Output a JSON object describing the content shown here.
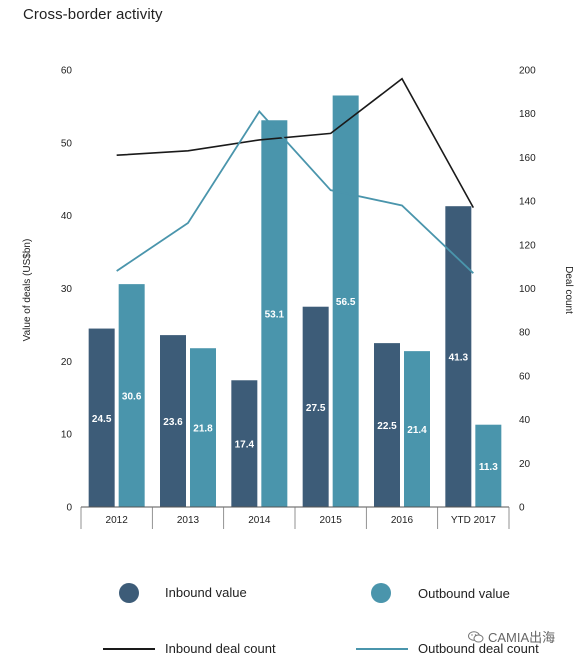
{
  "title": "Cross-border activity",
  "chart_data": {
    "type": "bar",
    "categories": [
      "2012",
      "2013",
      "2014",
      "2015",
      "2016",
      "YTD 2017"
    ],
    "series": [
      {
        "name": "Inbound value",
        "values": [
          24.5,
          23.6,
          17.4,
          27.5,
          22.5,
          41.3
        ],
        "labels": [
          "24.5",
          "23.6",
          "17.4",
          "27.5",
          "22.5",
          "41.3"
        ]
      },
      {
        "name": "Outbound value",
        "values": [
          30.6,
          21.8,
          53.1,
          56.5,
          21.4,
          11.3
        ],
        "labels": [
          "30.6",
          "21.8",
          "53.1",
          "56.5",
          "21.4",
          "11.3"
        ]
      }
    ],
    "line_series": [
      {
        "name": "Inbound deal count",
        "values": [
          161,
          163,
          168,
          171,
          196,
          137
        ]
      },
      {
        "name": "Outbound deal count",
        "values": [
          108,
          130,
          181,
          145,
          138,
          107
        ]
      }
    ],
    "ylabel": "Value of deals (US$bn)",
    "y2label": "Deal count",
    "ylim": [
      0,
      60
    ],
    "y2lim": [
      0,
      200
    ],
    "yticks": [
      "0",
      "10",
      "20",
      "30",
      "40",
      "50",
      "60"
    ],
    "y2ticks": [
      "0",
      "20",
      "40",
      "60",
      "80",
      "100",
      "120",
      "140",
      "160",
      "180",
      "200"
    ],
    "grid": false,
    "legend_position": "bottom"
  },
  "colors": {
    "inbound": "#3d5c78",
    "outbound": "#4a95ac",
    "inbound_line": "#1a1a1a",
    "outbound_line": "#4a95ac"
  },
  "legend": {
    "inbound_value": "Inbound value",
    "outbound_value": "Outbound value",
    "inbound_count": "Inbound deal count",
    "outbound_count": "Outbound deal count"
  },
  "watermark": {
    "text": "CAMIA出海",
    "icon": "wechat-icon"
  }
}
